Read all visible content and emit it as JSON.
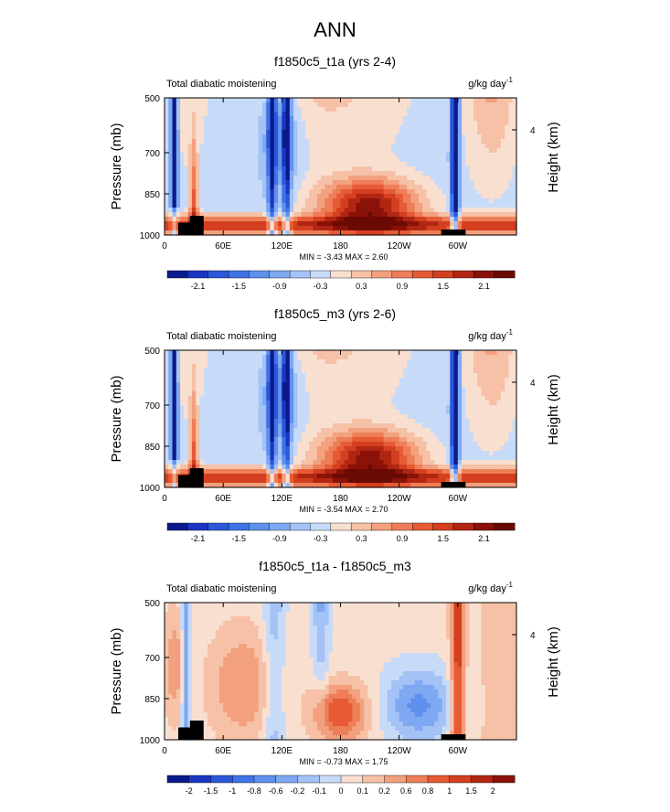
{
  "page_title": "ANN",
  "panels": [
    {
      "title": "f1850c5_t1a (yrs 2-4)",
      "left_label": "Total diabatic moistening",
      "units_base": "g/kg day",
      "units_exp": "-1",
      "ylabel": "Pressure (mb)",
      "ylabel_right": "Height (km)",
      "height_tick": "4",
      "xticks": [
        "0",
        "60E",
        "120E",
        "180",
        "120W",
        "60W"
      ],
      "yticks": [
        "500",
        "700",
        "850",
        "1000"
      ],
      "minmax": "MIN =  -3.43  MAX =   2.60",
      "colorbar_labels": [
        "-2.1",
        "-1.5",
        "-0.9",
        "-0.3",
        "0.3",
        "0.9",
        "1.5",
        "2.1"
      ]
    },
    {
      "title": "f1850c5_m3 (yrs 2-6)",
      "left_label": "Total diabatic moistening",
      "units_base": "g/kg day",
      "units_exp": "-1",
      "ylabel": "Pressure (mb)",
      "ylabel_right": "Height (km)",
      "height_tick": "4",
      "xticks": [
        "0",
        "60E",
        "120E",
        "180",
        "120W",
        "60W"
      ],
      "yticks": [
        "500",
        "700",
        "850",
        "1000"
      ],
      "minmax": "MIN =  -3.54  MAX =   2.70",
      "colorbar_labels": [
        "-2.1",
        "-1.5",
        "-0.9",
        "-0.3",
        "0.3",
        "0.9",
        "1.5",
        "2.1"
      ]
    },
    {
      "title": "f1850c5_t1a - f1850c5_m3",
      "left_label": "Total diabatic moistening",
      "units_base": "g/kg day",
      "units_exp": "-1",
      "ylabel": "Pressure (mb)",
      "ylabel_right": "Height (km)",
      "height_tick": "4",
      "xticks": [
        "0",
        "60E",
        "120E",
        "180",
        "120W",
        "60W"
      ],
      "yticks": [
        "500",
        "700",
        "850",
        "1000"
      ],
      "minmax": "MIN =  -0.73  MAX =   1.75",
      "colorbar_labels": [
        "-2",
        "-1.5",
        "-1",
        "-0.8",
        "-0.6",
        "-0.2",
        "-0.1",
        "0",
        "0.1",
        "0.2",
        "0.6",
        "0.8",
        "1",
        "1.5",
        "2"
      ]
    }
  ],
  "chart_data": [
    {
      "type": "heatmap",
      "title": "f1850c5_t1a (yrs 2-4)",
      "subtitle": "Total diabatic moistening",
      "units": "g/kg day-1",
      "xlabel": "",
      "ylabel": "Pressure (mb)",
      "ylabel_right": "Height (km)",
      "xlim": [
        0,
        360
      ],
      "ylim": [
        1000,
        500
      ],
      "min": -3.43,
      "max": 2.6,
      "contour_levels": [
        -2.4,
        -2.1,
        -1.8,
        -1.5,
        -1.2,
        -0.9,
        -0.6,
        -0.3,
        0,
        0.3,
        0.6,
        0.9,
        1.2,
        1.5,
        1.8,
        2.1
      ],
      "colors": [
        "#0a1a8c",
        "#1a36c2",
        "#2b57d9",
        "#3f74e6",
        "#5f90ee",
        "#7fa8f2",
        "#a3c2f6",
        "#c7dbf9",
        "#f9dfd0",
        "#f6c1a6",
        "#f2a07e",
        "#ee7e57",
        "#e65b35",
        "#d33f1f",
        "#b02612",
        "#8a1208",
        "#6a0a04"
      ],
      "grid": false
    },
    {
      "type": "heatmap",
      "title": "f1850c5_m3 (yrs 2-6)",
      "subtitle": "Total diabatic moistening",
      "units": "g/kg day-1",
      "xlabel": "",
      "ylabel": "Pressure (mb)",
      "ylabel_right": "Height (km)",
      "xlim": [
        0,
        360
      ],
      "ylim": [
        1000,
        500
      ],
      "min": -3.54,
      "max": 2.7,
      "contour_levels": [
        -2.4,
        -2.1,
        -1.8,
        -1.5,
        -1.2,
        -0.9,
        -0.6,
        -0.3,
        0,
        0.3,
        0.6,
        0.9,
        1.2,
        1.5,
        1.8,
        2.1
      ],
      "colors": [
        "#0a1a8c",
        "#1a36c2",
        "#2b57d9",
        "#3f74e6",
        "#5f90ee",
        "#7fa8f2",
        "#a3c2f6",
        "#c7dbf9",
        "#f9dfd0",
        "#f6c1a6",
        "#f2a07e",
        "#ee7e57",
        "#e65b35",
        "#d33f1f",
        "#b02612",
        "#8a1208",
        "#6a0a04"
      ],
      "grid": false
    },
    {
      "type": "heatmap",
      "title": "f1850c5_t1a - f1850c5_m3",
      "subtitle": "Total diabatic moistening",
      "units": "g/kg day-1",
      "xlabel": "",
      "ylabel": "Pressure (mb)",
      "ylabel_right": "Height (km)",
      "xlim": [
        0,
        360
      ],
      "ylim": [
        1000,
        500
      ],
      "min": -0.73,
      "max": 1.75,
      "contour_levels": [
        -2,
        -1.5,
        -1,
        -0.8,
        -0.6,
        -0.2,
        -0.1,
        0,
        0.1,
        0.2,
        0.6,
        0.8,
        1,
        1.5,
        2
      ],
      "colors": [
        "#0a1a8c",
        "#1a36c2",
        "#2b57d9",
        "#3f74e6",
        "#5f90ee",
        "#7fa8f2",
        "#a3c2f6",
        "#c7dbf9",
        "#f9dfd0",
        "#f6c1a6",
        "#f2a07e",
        "#ee7e57",
        "#e65b35",
        "#d33f1f",
        "#b02612",
        "#8a1208"
      ],
      "grid": false
    }
  ]
}
